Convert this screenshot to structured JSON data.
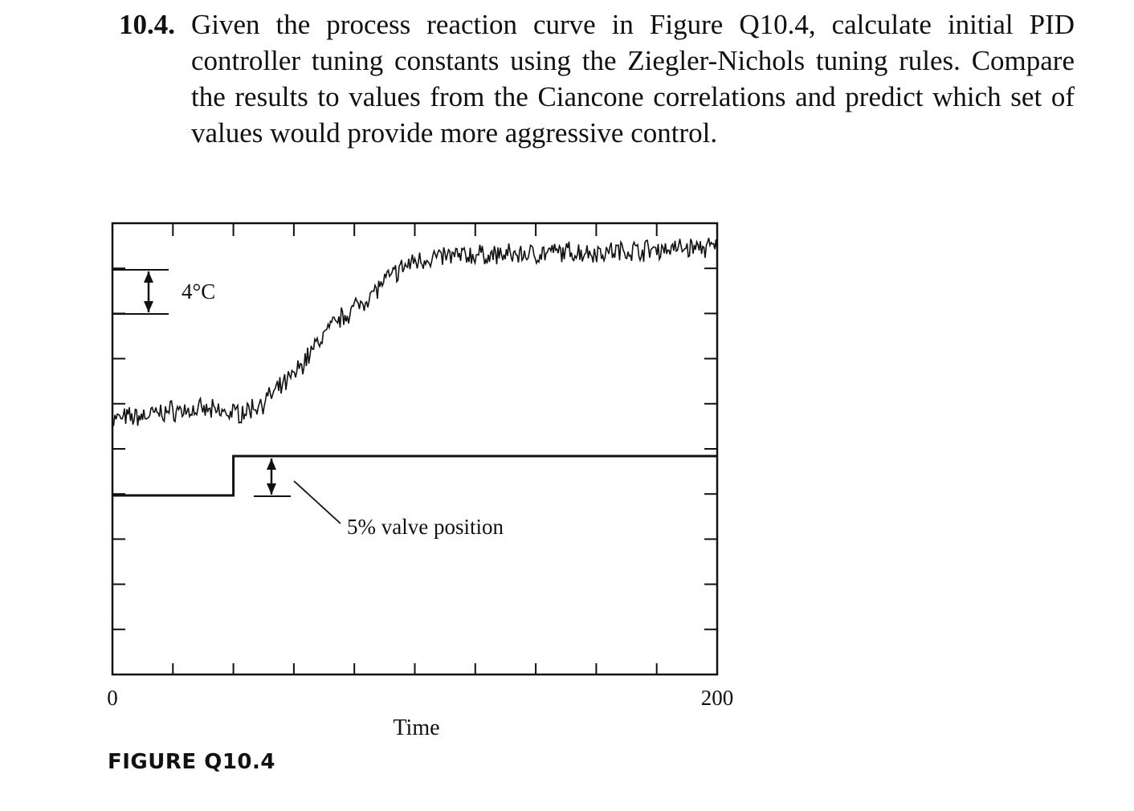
{
  "question": {
    "number": "10.4.",
    "text": "Given the process reaction curve in Figure Q10.4, calculate initial PID controller tuning constants using the Ziegler-Nichols tuning rules. Compare the results to values from the Ciancone correlations and predict which set of values would provide more aggressive control."
  },
  "figure_caption": "FIGURE Q10.4",
  "chart_data": {
    "type": "line",
    "title": "",
    "xlabel": "Time",
    "ylabel": "",
    "xlim": [
      0,
      200
    ],
    "x_tick_labels": [
      "0",
      "200"
    ],
    "grid": false,
    "annotations": {
      "temperature_scale": "4°C",
      "valve_scale": "5% valve position"
    },
    "series": [
      {
        "role": "temperature",
        "x": [
          0,
          10,
          20,
          30,
          40,
          45,
          50,
          55,
          60,
          65,
          70,
          75,
          80,
          85,
          90,
          95,
          100,
          105,
          110,
          120,
          130,
          140,
          150,
          160,
          170,
          180,
          190,
          200
        ],
        "y": [
          0.0,
          0.1,
          0.3,
          0.3,
          0.2,
          0.3,
          0.6,
          1.0,
          1.5,
          2.2,
          2.9,
          3.4,
          3.8,
          4.2,
          4.7,
          5.1,
          5.4,
          5.5,
          5.55,
          5.6,
          5.6,
          5.65,
          5.7,
          5.7,
          5.75,
          5.8,
          5.85,
          5.85
        ]
      },
      {
        "role": "valve_position",
        "x": [
          0,
          40,
          40,
          200
        ],
        "y": [
          0,
          0,
          5,
          5
        ]
      }
    ]
  }
}
